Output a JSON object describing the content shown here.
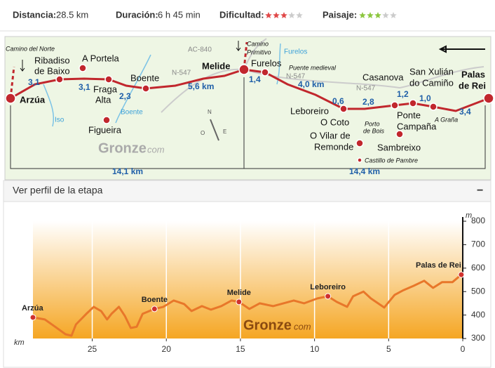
{
  "stats": {
    "distance": {
      "label": "Distancia:",
      "value": "28.5 km"
    },
    "duration": {
      "label": "Duración:",
      "value": "6 h 45 min"
    },
    "difficulty": {
      "label": "Dificultad:",
      "rating": 3,
      "max": 5,
      "color": "#e04848"
    },
    "landscape": {
      "label": "Paisaje:",
      "rating": 3,
      "max": 5,
      "color": "#8cc63f"
    }
  },
  "map": {
    "labels": [
      "Camino del Norte",
      "Ribadiso",
      "de Baixo",
      "A Portela",
      "Fraga",
      "Alta",
      "Boente",
      "Arzúa",
      "Figueira",
      "Melide",
      "Furelos",
      "Leboreiro",
      "O Coto",
      "O Vilar de",
      "Remonde",
      "Sambreixo",
      "Casanova",
      "San Xulián",
      "do Camiño",
      "Ponte",
      "Campaña",
      "Palas",
      "de Rei",
      "3,1",
      "3,1",
      "2,3",
      "5,6 km",
      "1,4",
      "4,0 km",
      "0,6",
      "2,8",
      "1,2",
      "1,0",
      "3,4",
      "AC-840",
      "N-547",
      "N-547",
      "N-547",
      "Iso",
      "Boente",
      "Furelos",
      "Camino",
      "Primitivo",
      "Puente medieval",
      "Porto",
      "de Bois",
      "A Graña",
      "Castillo de Pambre",
      "14,1 km",
      "14,4 km",
      "N",
      "O",
      "E"
    ],
    "brand": "Gronze",
    "brand_suffix": "com"
  },
  "panel": {
    "title": "Ver perfil de la etapa",
    "toggle": "−"
  },
  "chart_data": {
    "type": "line",
    "x": [
      29,
      28.2,
      27.5,
      26.8,
      26.4,
      26.1,
      25.4,
      24.9,
      24.4,
      24.0,
      23.7,
      23.2,
      22.8,
      22.4,
      22.0,
      21.6,
      20.8,
      20.2,
      19.5,
      18.8,
      18.3,
      17.6,
      17.0,
      16.3,
      15.6,
      15.1,
      14.4,
      13.7,
      12.8,
      12.1,
      11.4,
      10.7,
      9.8,
      9.1,
      8.5,
      7.8,
      7.4,
      6.7,
      6.2,
      5.3,
      4.6,
      4.0,
      3.3,
      2.6,
      2.0,
      1.4,
      0.7,
      0.1
    ],
    "series": [
      {
        "color": "#e8772a",
        "values": [
          390,
          381,
          350,
          318,
          312,
          360,
          405,
          435,
          417,
          381,
          405,
          435,
          396,
          345,
          350,
          405,
          426,
          435,
          462,
          447,
          417,
          438,
          423,
          438,
          462,
          456,
          426,
          450,
          438,
          450,
          462,
          450,
          471,
          480,
          456,
          435,
          480,
          500,
          471,
          432,
          486,
          506,
          525,
          546,
          516,
          540,
          540,
          572
        ]
      }
    ],
    "points": [
      {
        "label": "Arzúa",
        "x": 29,
        "y": 390
      },
      {
        "label": "Boente",
        "x": 20.8,
        "y": 426
      },
      {
        "label": "Melide",
        "x": 15.1,
        "y": 456
      },
      {
        "label": "Leboreiro",
        "x": 9.1,
        "y": 480
      },
      {
        "label": "Palas de Rei",
        "x": 0.1,
        "y": 572
      }
    ],
    "xlim": [
      29,
      0
    ],
    "ylim": [
      300,
      800
    ],
    "xticks": [
      25,
      20,
      15,
      10,
      5,
      0
    ],
    "yticks": [
      300,
      400,
      500,
      600,
      700,
      800
    ],
    "x_unit": "km",
    "y_unit": "m",
    "watermark": "Gronze",
    "watermark_suffix": "com",
    "grid": true
  }
}
